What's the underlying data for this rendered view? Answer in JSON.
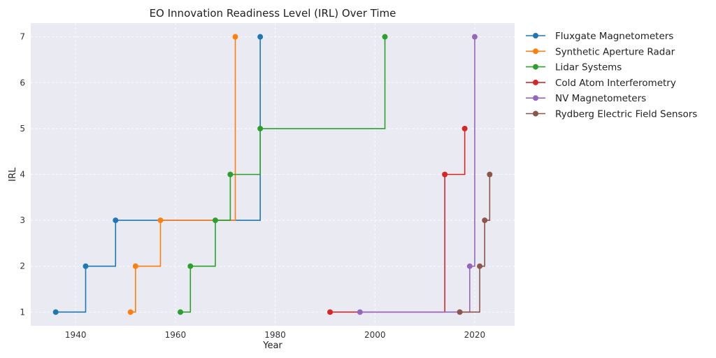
{
  "chart_data": {
    "type": "line",
    "step": "post",
    "title": "EO Innovation Readiness Level (IRL) Over Time",
    "xlabel": "Year",
    "ylabel": "IRL",
    "xlim": [
      1931,
      2028
    ],
    "ylim": [
      0.7,
      7.3
    ],
    "xticks": [
      1940,
      1960,
      1980,
      2000,
      2020
    ],
    "yticks": [
      1,
      2,
      3,
      4,
      5,
      6,
      7
    ],
    "grid": true,
    "legend_position": "outside-right",
    "series": [
      {
        "name": "Fluxgate Magnetometers",
        "color": "#1f77b4",
        "points": [
          [
            1936,
            1
          ],
          [
            1942,
            2
          ],
          [
            1948,
            3
          ],
          [
            1977,
            7
          ]
        ]
      },
      {
        "name": "Synthetic Aperture Radar",
        "color": "#ff7f0e",
        "points": [
          [
            1951,
            1
          ],
          [
            1952,
            2
          ],
          [
            1957,
            3
          ],
          [
            1972,
            7
          ]
        ]
      },
      {
        "name": "Lidar Systems",
        "color": "#2ca02c",
        "points": [
          [
            1961,
            1
          ],
          [
            1963,
            2
          ],
          [
            1968,
            3
          ],
          [
            1971,
            4
          ],
          [
            1977,
            5
          ],
          [
            2002,
            7
          ]
        ]
      },
      {
        "name": "Cold Atom Interferometry",
        "color": "#d62728",
        "points": [
          [
            1991,
            1
          ],
          [
            2014,
            4
          ],
          [
            2018,
            5
          ]
        ]
      },
      {
        "name": "NV Magnetometers",
        "color": "#9467bd",
        "points": [
          [
            1997,
            1
          ],
          [
            2019,
            2
          ],
          [
            2020,
            7
          ]
        ]
      },
      {
        "name": "Rydberg Electric Field Sensors",
        "color": "#8c564b",
        "points": [
          [
            2017,
            1
          ],
          [
            2021,
            2
          ],
          [
            2022,
            3
          ],
          [
            2023,
            4
          ]
        ]
      }
    ]
  }
}
